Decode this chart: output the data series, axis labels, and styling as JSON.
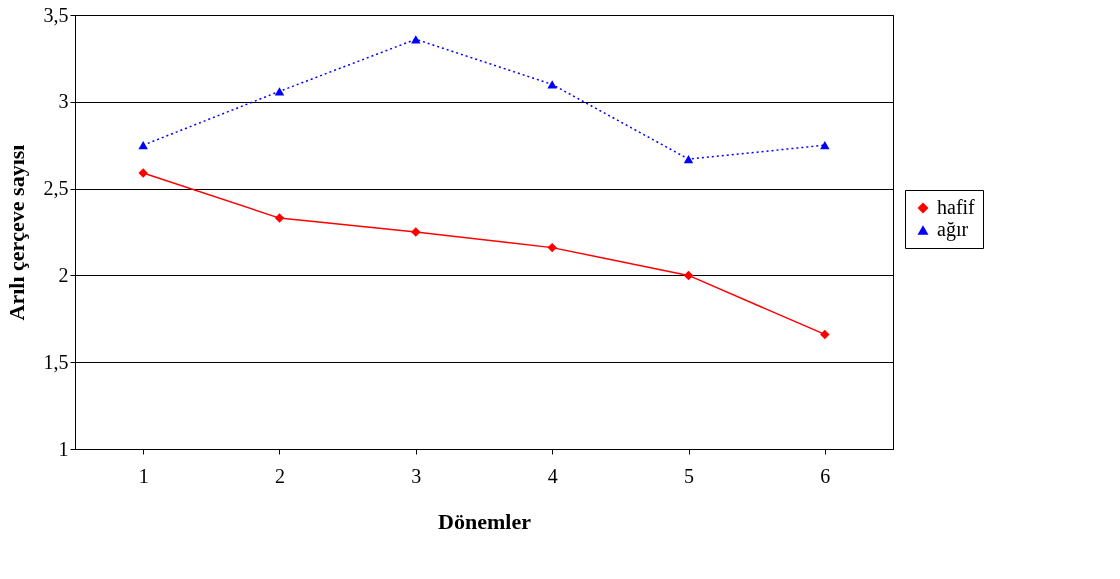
{
  "chart_data": {
    "type": "line",
    "xlabel": "Dönemler",
    "ylabel": "Arılı çerçeve sayısı",
    "categories": [
      "1",
      "2",
      "3",
      "4",
      "5",
      "6"
    ],
    "ylim": [
      1,
      3.5
    ],
    "yticks": [
      1,
      {
        "value": 1.5,
        "label": "1,5"
      },
      2,
      {
        "value": 2.5,
        "label": "2,5"
      },
      3,
      {
        "value": 3.5,
        "label": "3,5"
      }
    ],
    "grid": "y",
    "legend": "right",
    "series": [
      {
        "name": "hafif",
        "color": "#ff0000",
        "marker": "diamond",
        "line_style": "solid",
        "values": [
          2.59,
          2.33,
          2.25,
          2.16,
          2.0,
          1.66
        ]
      },
      {
        "name": "ağır",
        "color": "#0000ff",
        "marker": "triangle",
        "line_style": "dotted",
        "values": [
          2.75,
          3.06,
          3.36,
          3.1,
          2.67,
          2.75
        ]
      }
    ]
  }
}
